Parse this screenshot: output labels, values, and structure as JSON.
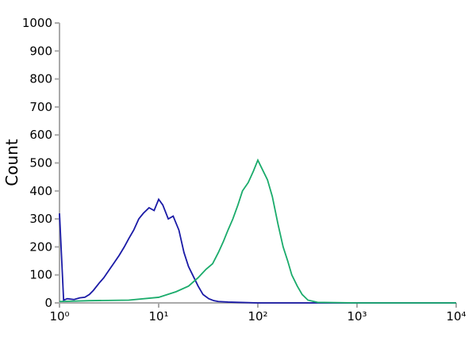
{
  "chart_data": {
    "type": "line",
    "y_label": "Count",
    "xscale": "log",
    "xlim": [
      1,
      10000
    ],
    "xticks": [
      {
        "value": 1,
        "label": "10⁰"
      },
      {
        "value": 10,
        "label": "10¹"
      },
      {
        "value": 100,
        "label": "10²"
      },
      {
        "value": 1000,
        "label": "10³"
      },
      {
        "value": 10000,
        "label": "10⁴"
      }
    ],
    "ylim": [
      0,
      1000
    ],
    "yticks": [
      0,
      100,
      200,
      300,
      400,
      500,
      600,
      700,
      800,
      900,
      1000
    ],
    "series": [
      {
        "color": "#1a1aa6",
        "x": [
          1,
          1.1,
          1.2,
          1.4,
          1.6,
          1.8,
          2,
          2.2,
          2.5,
          2.8,
          3.2,
          3.5,
          4,
          4.5,
          5,
          5.6,
          6.3,
          7,
          8,
          9,
          10,
          11,
          12.5,
          14,
          16,
          18,
          20,
          22,
          25,
          28,
          32,
          36,
          40,
          50,
          63,
          80,
          100,
          1000,
          10000
        ],
        "values": [
          320,
          10,
          15,
          12,
          18,
          20,
          30,
          45,
          70,
          90,
          120,
          140,
          170,
          200,
          230,
          260,
          300,
          320,
          340,
          330,
          370,
          350,
          300,
          310,
          260,
          180,
          130,
          100,
          60,
          30,
          15,
          8,
          5,
          3,
          2,
          1,
          0,
          0,
          0
        ]
      },
      {
        "color": "#1aab6b",
        "x": [
          1,
          2,
          5,
          10,
          15,
          20,
          25,
          30,
          35,
          40,
          45,
          50,
          56,
          63,
          70,
          80,
          90,
          100,
          110,
          125,
          140,
          160,
          180,
          200,
          220,
          250,
          280,
          320,
          400,
          1000,
          10000
        ],
        "values": [
          5,
          8,
          10,
          20,
          40,
          60,
          90,
          120,
          140,
          180,
          220,
          260,
          300,
          350,
          400,
          430,
          470,
          510,
          480,
          440,
          380,
          280,
          200,
          150,
          100,
          60,
          30,
          10,
          2,
          0,
          0
        ]
      }
    ]
  }
}
